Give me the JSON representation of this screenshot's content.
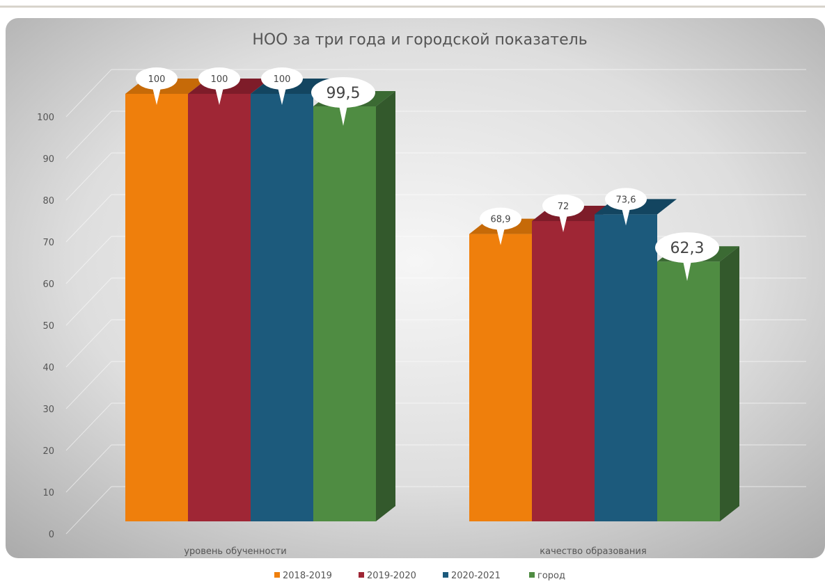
{
  "chart_data": {
    "type": "bar",
    "title": "НОО за три года и городской показатель",
    "categories": [
      "уровень обученности",
      "качество образования"
    ],
    "series": [
      {
        "name": "2018-2019",
        "values": [
          100,
          68.9
        ],
        "labels": [
          "100",
          "68,9"
        ],
        "color": "#ef7f0c",
        "side": "#b85d04",
        "top": "#c66a08"
      },
      {
        "name": "2019-2020",
        "values": [
          100,
          72
        ],
        "labels": [
          "100",
          "72"
        ],
        "color": "#9f2635",
        "side": "#6e1724",
        "top": "#7e1c29"
      },
      {
        "name": "2020-2021",
        "values": [
          100,
          73.6
        ],
        "labels": [
          "100",
          "73,6"
        ],
        "color": "#1c5a7c",
        "side": "#123f58",
        "top": "#134560"
      },
      {
        "name": "город",
        "values": [
          99.5,
          62.3
        ],
        "labels": [
          "99,5",
          "62,3"
        ],
        "color": "#4f8c42",
        "side": "#33592c",
        "top": "#3b6a33"
      }
    ],
    "y_ticks": [
      "0",
      "10",
      "20",
      "30",
      "40",
      "50",
      "60",
      "70",
      "80",
      "90",
      "100"
    ],
    "ylim": [
      0,
      100
    ],
    "grid": true,
    "legend_position": "bottom",
    "xlabel": "",
    "ylabel": ""
  }
}
